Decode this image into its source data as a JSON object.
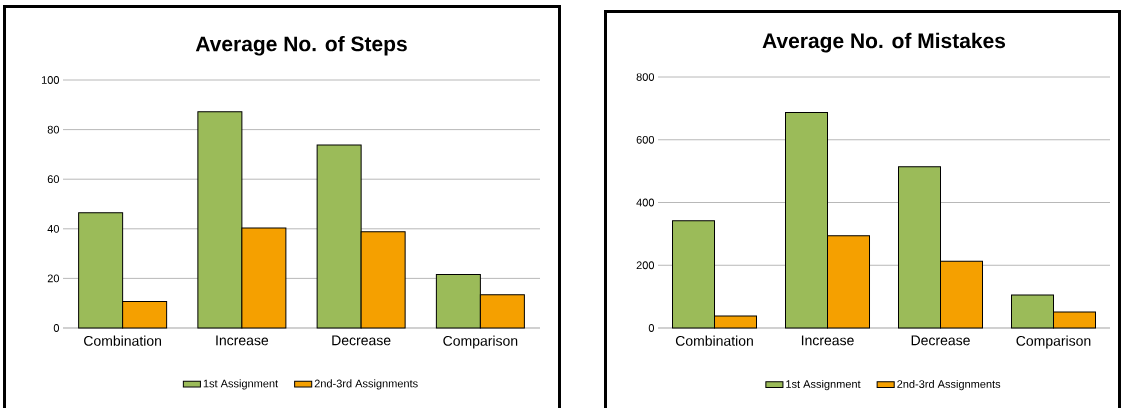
{
  "chart_data": [
    {
      "type": "bar",
      "title": "Average No. of Steps",
      "categories": [
        "Combination",
        "Increase",
        "Decrease",
        "Comparison"
      ],
      "series": [
        {
          "name": "1st Assignment",
          "color": "#9bbb59",
          "values": [
            46.5,
            87.2,
            73.8,
            21.6
          ]
        },
        {
          "name": "2nd-3rd Assignments",
          "color": "#f5a000",
          "values": [
            10.7,
            40.3,
            38.8,
            13.4
          ]
        }
      ],
      "ylim": [
        0,
        100
      ],
      "yticks": [
        0,
        20,
        40,
        60,
        80,
        100
      ],
      "grid": "y",
      "legend": "bottom"
    },
    {
      "type": "bar",
      "title": "Average No. of Mistakes",
      "categories": [
        "Combination",
        "Increase",
        "Decrease",
        "Comparison"
      ],
      "series": [
        {
          "name": "1st Assignment",
          "color": "#9bbb59",
          "values": [
            342,
            687,
            514,
            105
          ]
        },
        {
          "name": "2nd-3rd Assignments",
          "color": "#f5a000",
          "values": [
            38,
            294,
            213,
            51
          ]
        }
      ],
      "ylim": [
        0,
        800
      ],
      "yticks": [
        0,
        200,
        400,
        600,
        800
      ],
      "grid": "y",
      "legend": "bottom"
    }
  ]
}
